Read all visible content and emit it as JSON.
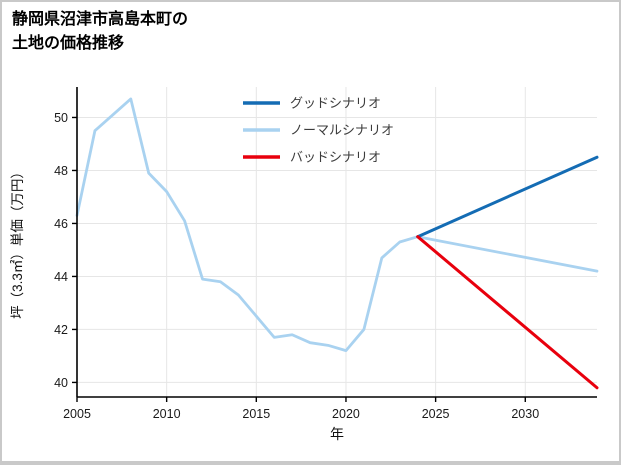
{
  "title": {
    "line1": "静岡県沼津市高島本町の",
    "line2": "土地の価格推移"
  },
  "chart_data": {
    "type": "line",
    "title": "静岡県沼津市高島本町の土地の価格推移",
    "xlabel": "年",
    "ylabel": "坪（3.3㎡）単価（万円）",
    "xlim": [
      2005,
      2034
    ],
    "ylim": [
      39.45,
      51.15
    ],
    "xticks": [
      2005,
      2010,
      2015,
      2020,
      2025,
      2030
    ],
    "yticks": [
      40,
      42,
      44,
      46,
      48,
      50
    ],
    "grid": true,
    "legend_position": "upper center",
    "colors": {
      "good": "#146cb4",
      "normal": "#a9d2f0",
      "bad": "#e8000d",
      "grid": "#e6e6e6",
      "axis": "#000000"
    },
    "series": [
      {
        "id": "good",
        "name": "グッドシナリオ",
        "color": "#146cb4",
        "width": 3,
        "z": 2,
        "x": [
          2024,
          2034
        ],
        "y": [
          45.5,
          48.5
        ]
      },
      {
        "id": "normal",
        "name": "ノーマルシナリオ",
        "color": "#a9d2f0",
        "width": 2.8,
        "z": 1,
        "x": [
          2005,
          2006,
          2007,
          2008,
          2009,
          2010,
          2011,
          2012,
          2013,
          2014,
          2015,
          2016,
          2017,
          2018,
          2019,
          2020,
          2021,
          2022,
          2023,
          2024,
          2034
        ],
        "y": [
          46.3,
          49.5,
          50.1,
          50.7,
          47.9,
          47.2,
          46.1,
          43.9,
          43.8,
          43.3,
          42.5,
          41.7,
          41.8,
          41.5,
          41.4,
          41.2,
          42.0,
          44.7,
          45.3,
          45.5,
          44.2
        ]
      },
      {
        "id": "bad",
        "name": "バッドシナリオ",
        "color": "#e8000d",
        "width": 3,
        "z": 3,
        "x": [
          2024,
          2034
        ],
        "y": [
          45.5,
          39.8
        ]
      }
    ]
  }
}
